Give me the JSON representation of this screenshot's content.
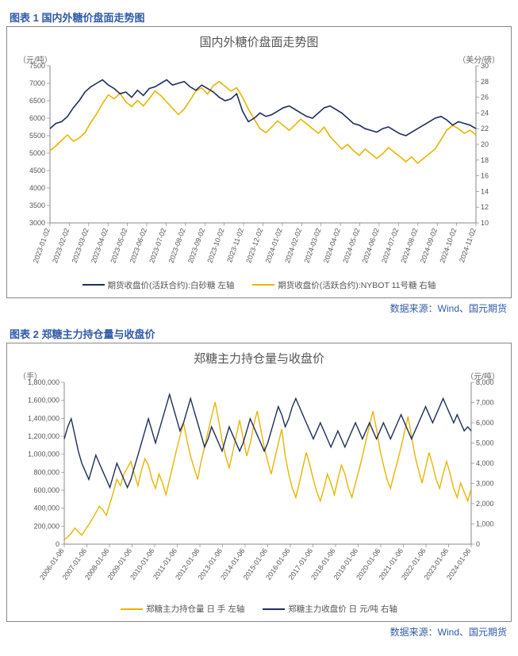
{
  "chart1": {
    "fig_label": "图表 1 国内外糖价盘面走势图",
    "title": "国内外糖价盘面走势图",
    "type": "line",
    "y_left_unit": "（元/吨）",
    "y_right_unit": "（美分/磅）",
    "y_left": {
      "min": 3000,
      "max": 7500,
      "step": 500
    },
    "y_right": {
      "min": 10,
      "max": 30,
      "step": 2
    },
    "x_labels": [
      "2023-01-02",
      "2023-02-02",
      "2023-03-02",
      "2023-04-02",
      "2023-05-02",
      "2023-06-02",
      "2023-07-02",
      "2023-08-02",
      "2023-09-02",
      "2023-10-02",
      "2023-11-02",
      "2023-12-02",
      "2024-01-02",
      "2024-02-02",
      "2024-03-02",
      "2024-04-02",
      "2024-05-02",
      "2024-06-02",
      "2024-07-02",
      "2024-08-02",
      "2024-09-02",
      "2024-10-02",
      "2024-11-02"
    ],
    "colors": {
      "navy": "#1e2f5a",
      "gold": "#e8b500",
      "axis": "#888888",
      "bg": "#ffffff"
    },
    "line_width": 1.6,
    "series_left": {
      "name": "期货收盘价(活跃合约):白砂糖 左轴",
      "color": "#1e2f5a",
      "values": [
        5700,
        5850,
        5900,
        6050,
        6300,
        6500,
        6750,
        6900,
        7000,
        7100,
        6950,
        6850,
        6700,
        6750,
        6600,
        6800,
        6650,
        6850,
        6900,
        7000,
        7100,
        6950,
        7000,
        7050,
        6900,
        6800,
        6950,
        6850,
        6750,
        6600,
        6500,
        6550,
        6700,
        6200,
        5900,
        6000,
        6150,
        6050,
        6100,
        6200,
        6300,
        6350,
        6250,
        6150,
        6050,
        6000,
        6150,
        6300,
        6350,
        6250,
        6150,
        6000,
        5850,
        5800,
        5700,
        5650,
        5600,
        5700,
        5750,
        5650,
        5550,
        5500,
        5600,
        5700,
        5800,
        5900,
        6000,
        6050,
        5950,
        5800,
        5900,
        5850,
        5800,
        5700
      ]
    },
    "series_right": {
      "name": "期货收盘价(活跃合约):NYBOT 11号糖 右轴",
      "color": "#e8b500",
      "values": [
        19.2,
        19.8,
        20.5,
        21.2,
        20.4,
        20.8,
        21.5,
        22.8,
        23.9,
        25.2,
        26.3,
        25.8,
        26.5,
        25.4,
        24.8,
        25.6,
        24.9,
        25.8,
        26.8,
        26.2,
        25.4,
        24.6,
        23.8,
        24.5,
        25.6,
        26.8,
        27.2,
        26.4,
        27.5,
        28.0,
        27.4,
        26.8,
        27.2,
        26.0,
        24.5,
        23.2,
        22.0,
        21.5,
        22.2,
        23.0,
        22.4,
        21.8,
        22.5,
        23.2,
        22.6,
        22.0,
        21.4,
        22.2,
        21.0,
        20.2,
        19.4,
        20.0,
        19.2,
        18.6,
        19.4,
        18.8,
        18.2,
        18.8,
        19.6,
        19.0,
        18.4,
        17.8,
        18.4,
        17.6,
        18.2,
        18.8,
        19.4,
        20.6,
        21.8,
        22.4,
        22.0,
        21.4,
        21.8,
        21.2
      ]
    },
    "source": "数据来源：Wind、国元期货"
  },
  "chart2": {
    "fig_label": "图表 2 郑糖主力持仓量与收盘价",
    "title": "郑糖主力持仓量与收盘价",
    "type": "line",
    "y_left_unit": "（手）",
    "y_right_unit": "（元/吨）",
    "y_left": {
      "min": 0,
      "max": 1800000,
      "step": 200000
    },
    "y_right": {
      "min": 0,
      "max": 8000,
      "step": 1000
    },
    "x_labels": [
      "2006-01-06",
      "2007-01-06",
      "2008-01-06",
      "2009-01-06",
      "2010-01-06",
      "2011-01-06",
      "2012-01-06",
      "2013-01-06",
      "2014-01-06",
      "2015-01-06",
      "2016-01-06",
      "2017-01-06",
      "2018-01-06",
      "2019-01-06",
      "2020-01-06",
      "2021-01-06",
      "2022-01-06",
      "2023-01-06",
      "2024-01-06"
    ],
    "colors": {
      "navy": "#1e2f5a",
      "gold": "#e8b500",
      "axis": "#888888",
      "bg": "#ffffff"
    },
    "line_width": 1.4,
    "series_left": {
      "name": "郑糖主力持仓量 日 手  左轴",
      "color": "#e8b500",
      "values": [
        50000,
        80000,
        120000,
        180000,
        140000,
        100000,
        160000,
        220000,
        280000,
        350000,
        420000,
        380000,
        320000,
        450000,
        580000,
        720000,
        650000,
        780000,
        850000,
        920000,
        780000,
        650000,
        820000,
        950000,
        880000,
        720000,
        620000,
        780000,
        680000,
        550000,
        720000,
        880000,
        1050000,
        1200000,
        1350000,
        1150000,
        980000,
        850000,
        720000,
        920000,
        1080000,
        1250000,
        1420000,
        1580000,
        1380000,
        1150000,
        980000,
        850000,
        1020000,
        1200000,
        1380000,
        1180000,
        980000,
        1120000,
        1320000,
        1480000,
        1280000,
        1080000,
        920000,
        780000,
        950000,
        1120000,
        1280000,
        980000,
        780000,
        620000,
        520000,
        680000,
        850000,
        1020000,
        880000,
        720000,
        580000,
        480000,
        620000,
        780000,
        680000,
        550000,
        720000,
        880000,
        780000,
        620000,
        520000,
        680000,
        820000,
        980000,
        1150000,
        1320000,
        1480000,
        1280000,
        1050000,
        880000,
        720000,
        620000,
        780000,
        920000,
        1080000,
        1250000,
        1420000,
        1200000,
        980000,
        820000,
        680000,
        850000,
        1020000,
        880000,
        720000,
        620000,
        780000,
        920000,
        780000,
        620000,
        520000,
        680000,
        580000,
        480000,
        620000
      ]
    },
    "series_right": {
      "name": "郑糖主力收盘价 日 元/吨  右轴",
      "color": "#1e2f5a",
      "values": [
        5200,
        5800,
        6200,
        5400,
        4600,
        4000,
        3600,
        3200,
        3800,
        4400,
        4000,
        3600,
        3200,
        2800,
        3400,
        4000,
        3600,
        3200,
        2800,
        3200,
        3800,
        4400,
        5000,
        5600,
        6200,
        5600,
        5000,
        5600,
        6200,
        6800,
        7400,
        6800,
        6200,
        5600,
        6000,
        6600,
        7200,
        6600,
        6000,
        5400,
        4800,
        5200,
        5800,
        5400,
        5000,
        4600,
        5200,
        5800,
        5400,
        5000,
        4600,
        5000,
        5600,
        6200,
        5800,
        5400,
        5000,
        4600,
        5000,
        5600,
        6200,
        6800,
        6400,
        5800,
        6200,
        6800,
        7200,
        6800,
        6400,
        6000,
        5600,
        5200,
        5600,
        6000,
        5600,
        5200,
        4800,
        5200,
        5600,
        5200,
        4800,
        5200,
        5600,
        6000,
        5600,
        5200,
        5600,
        6000,
        5600,
        5200,
        5600,
        6000,
        5600,
        5200,
        5600,
        6000,
        6400,
        6000,
        5600,
        5200,
        5600,
        6000,
        6400,
        6800,
        6400,
        6000,
        6400,
        6800,
        7200,
        6800,
        6400,
        6000,
        6400,
        6000,
        5600,
        5800,
        5600
      ]
    },
    "source": "数据来源：Wind、国元期货"
  }
}
